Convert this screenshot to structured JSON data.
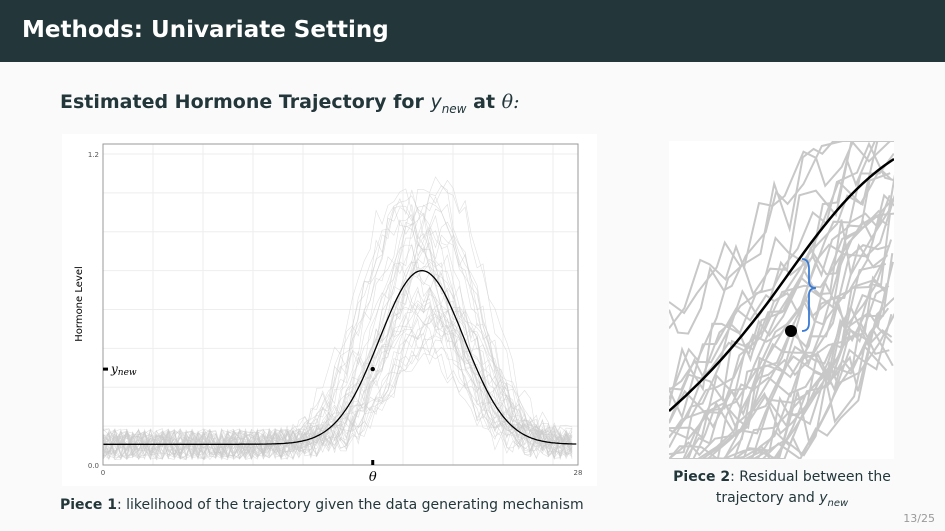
{
  "header": {
    "title": "Methods: Univariate Setting"
  },
  "subtitle": {
    "text": "Estimated Hormone Trajectory for",
    "var": "y",
    "var_sub": "new",
    "at": "at",
    "theta": "θ:"
  },
  "chart_data": {
    "type": "line",
    "ylabel": "Hormone Level",
    "xlim": [
      0,
      28
    ],
    "ylim": [
      0,
      1.2
    ],
    "x_ticks": [
      "0",
      "28"
    ],
    "y_ticks": [
      "0.0",
      "1.2"
    ],
    "grid": true,
    "mean_curve": {
      "baseline": 0.08,
      "peak": 0.75,
      "peak_x": 18.8,
      "sd": 2.5,
      "color": "#000000"
    },
    "sample_trajectories_color": "#cccccc",
    "theta": {
      "label": "θ",
      "x": 15.9
    },
    "y_new": {
      "label": "y",
      "label_sub": "new",
      "y": 0.37
    }
  },
  "captions": {
    "piece1_bold": "Piece 1",
    "piece1_text": ": likelihood of the trajectory given the data generating mechanism",
    "piece2_bold": "Piece 2",
    "piece2_text": ": Residual between the",
    "piece2_line2": "trajectory and",
    "piece2_var": "y",
    "piece2_sub": "new"
  },
  "residual_brace_color": "#3a7bd5",
  "page_number": "13/25"
}
